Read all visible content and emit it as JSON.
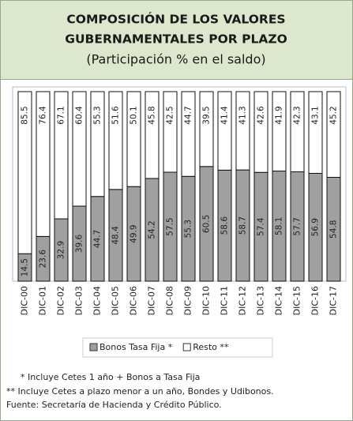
{
  "chart_data": {
    "type": "stacked_bar",
    "title": "COMPOSICIÓN DE LOS VALORES GUBERNAMENTALES POR PLAZO",
    "title_lines": [
      "COMPOSICIÓN DE LOS VALORES",
      "GUBERNAMENTALES POR PLAZO"
    ],
    "subtitle": "(Participación % en el saldo)",
    "categories": [
      "DIC-00",
      "DIC-01",
      "DIC-02",
      "DIC-03",
      "DIC-04",
      "DIC-05",
      "DIC-06",
      "DIC-07",
      "DIC-08",
      "DIC-09",
      "DIC-10",
      "DIC-11",
      "DIC-12",
      "DIC-13",
      "DIC-14",
      "DIC-15",
      "DIC-16",
      "DIC-17"
    ],
    "series": [
      {
        "name": "Bonos Tasa Fija *",
        "color": "#a0a0a0",
        "values": [
          14.5,
          23.6,
          32.9,
          39.6,
          44.7,
          48.4,
          49.9,
          54.2,
          57.5,
          55.3,
          60.5,
          58.6,
          58.7,
          57.4,
          58.1,
          57.7,
          56.9,
          54.8
        ]
      },
      {
        "name": "Resto **",
        "color": "#ffffff",
        "values": [
          85.5,
          76.4,
          67.1,
          60.4,
          55.3,
          51.6,
          50.1,
          45.8,
          42.5,
          44.7,
          39.5,
          41.4,
          41.3,
          42.6,
          41.9,
          42.3,
          43.1,
          45.2
        ]
      }
    ],
    "footnotes": [
      "* Incluye Cetes 1 año + Bonos a Tasa Fija",
      "** Incluye Cetes a plazo menor a un año, Bondes y Udibonos.",
      "Fuente: Secretaría de Hacienda y Crédito Público."
    ]
  }
}
